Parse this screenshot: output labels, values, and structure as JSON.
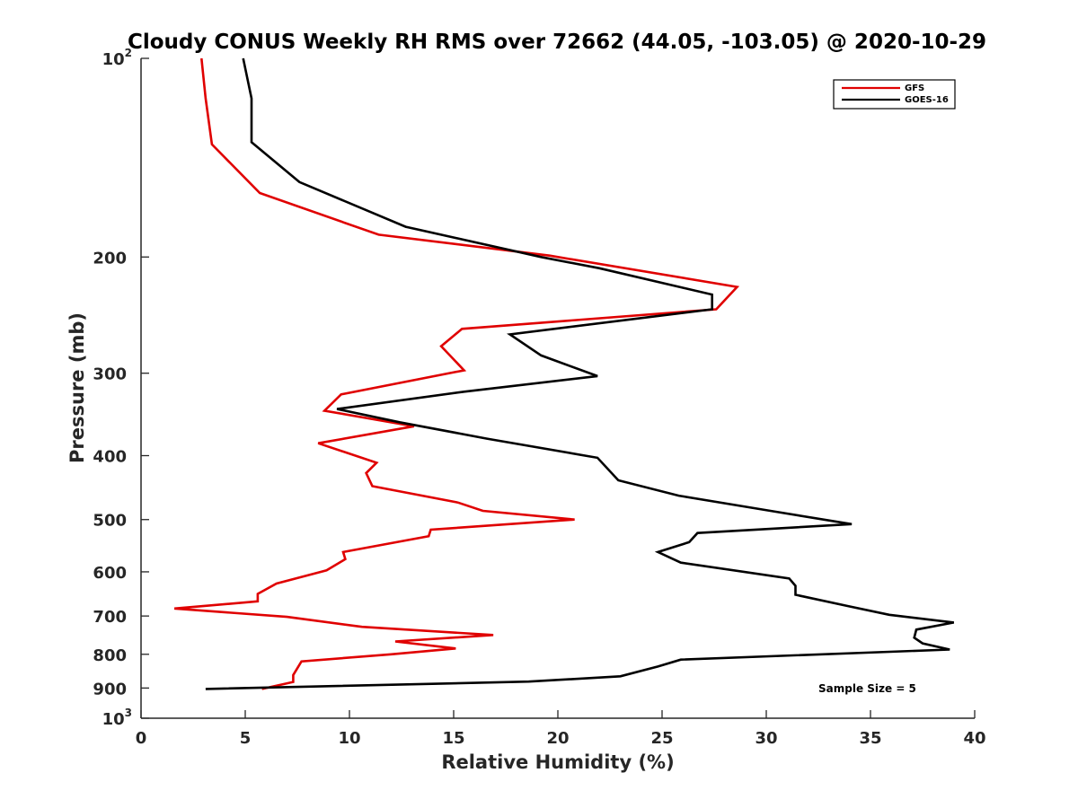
{
  "chart_data": {
    "type": "line",
    "title": "Cloudy CONUS Weekly RH RMS over 72662 (44.05, -103.05) @ 2020-10-29",
    "xlabel": "Relative Humidity (%)",
    "ylabel": "Pressure (mb)",
    "xlim": [
      0,
      40
    ],
    "ylim": [
      100,
      1000
    ],
    "y_scale": "log",
    "y_reversed": true,
    "x_ticks": [
      {
        "value": 0,
        "label": "0"
      },
      {
        "value": 5,
        "label": "5"
      },
      {
        "value": 10,
        "label": "10"
      },
      {
        "value": 15,
        "label": "15"
      },
      {
        "value": 20,
        "label": "20"
      },
      {
        "value": 25,
        "label": "25"
      },
      {
        "value": 30,
        "label": "30"
      },
      {
        "value": 35,
        "label": "35"
      },
      {
        "value": 40,
        "label": "40"
      }
    ],
    "y_ticks": [
      {
        "value": 100,
        "base": "10",
        "exp": "2"
      },
      {
        "value": 200,
        "label": "200"
      },
      {
        "value": 300,
        "label": "300"
      },
      {
        "value": 400,
        "label": "400"
      },
      {
        "value": 500,
        "label": "500"
      },
      {
        "value": 600,
        "label": "600"
      },
      {
        "value": 700,
        "label": "700"
      },
      {
        "value": 800,
        "label": "800"
      },
      {
        "value": 900,
        "label": "900"
      },
      {
        "value": 1000,
        "base": "10",
        "exp": "3"
      }
    ],
    "grid": false,
    "legend": {
      "position": "top-right"
    },
    "series": [
      {
        "name": "GFS",
        "color": "#e00000",
        "points": [
          [
            2.9,
            100
          ],
          [
            3.1,
            115
          ],
          [
            3.4,
            135
          ],
          [
            5.7,
            160
          ],
          [
            11.4,
            185
          ],
          [
            19.6,
            199
          ],
          [
            28.6,
            222
          ],
          [
            27.6,
            240
          ],
          [
            15.4,
            257
          ],
          [
            14.4,
            273
          ],
          [
            15.5,
            297
          ],
          [
            9.6,
            323
          ],
          [
            8.8,
            342
          ],
          [
            13.1,
            361
          ],
          [
            8.5,
            383
          ],
          [
            11.3,
            410
          ],
          [
            10.8,
            425
          ],
          [
            11.1,
            445
          ],
          [
            15.2,
            471
          ],
          [
            16.4,
            485
          ],
          [
            20.8,
            500
          ],
          [
            13.9,
            518
          ],
          [
            13.8,
            530
          ],
          [
            9.7,
            560
          ],
          [
            9.8,
            574
          ],
          [
            8.9,
            597
          ],
          [
            6.5,
            625
          ],
          [
            5.6,
            648
          ],
          [
            5.6,
            665
          ],
          [
            1.6,
            682
          ],
          [
            7.0,
            702
          ],
          [
            10.6,
            727
          ],
          [
            16.9,
            748
          ],
          [
            12.2,
            765
          ],
          [
            15.1,
            784
          ],
          [
            12.0,
            800
          ],
          [
            7.7,
            820
          ],
          [
            7.3,
            860
          ],
          [
            7.3,
            881
          ],
          [
            5.8,
            903
          ]
        ]
      },
      {
        "name": "GOES-16",
        "color": "#000000",
        "points": [
          [
            4.9,
            100
          ],
          [
            5.3,
            115
          ],
          [
            5.3,
            134
          ],
          [
            7.6,
            154
          ],
          [
            12.7,
            180
          ],
          [
            19.2,
            200
          ],
          [
            22.0,
            208
          ],
          [
            27.4,
            228
          ],
          [
            27.4,
            240
          ],
          [
            17.7,
            262
          ],
          [
            19.2,
            282
          ],
          [
            21.9,
            303
          ],
          [
            15.5,
            320
          ],
          [
            9.4,
            340
          ],
          [
            12.4,
            356
          ],
          [
            16.6,
            377
          ],
          [
            21.9,
            403
          ],
          [
            22.9,
            436
          ],
          [
            25.8,
            460
          ],
          [
            30.2,
            485
          ],
          [
            34.1,
            508
          ],
          [
            26.7,
            524
          ],
          [
            26.3,
            541
          ],
          [
            24.8,
            560
          ],
          [
            25.9,
            581
          ],
          [
            31.1,
            614
          ],
          [
            31.4,
            630
          ],
          [
            31.4,
            650
          ],
          [
            33.9,
            676
          ],
          [
            35.9,
            697
          ],
          [
            39.0,
            716
          ],
          [
            37.2,
            734
          ],
          [
            37.1,
            755
          ],
          [
            37.5,
            770
          ],
          [
            38.8,
            787
          ],
          [
            31.3,
            803
          ],
          [
            25.9,
            815
          ],
          [
            24.8,
            835
          ],
          [
            23.0,
            864
          ],
          [
            18.6,
            880
          ],
          [
            3.1,
            903
          ]
        ]
      }
    ],
    "annotations": [
      {
        "text": "Sample Size = 5"
      }
    ]
  }
}
